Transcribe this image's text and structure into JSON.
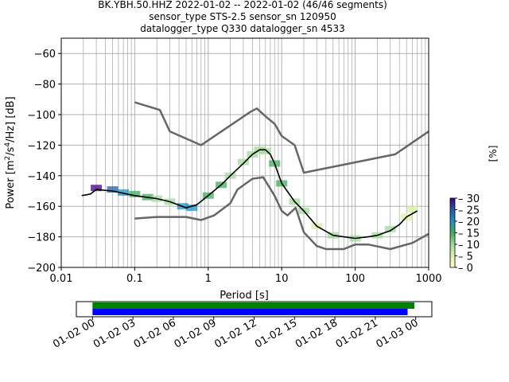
{
  "title_lines": [
    "BK.YBH.50.HHZ   2022-01-02 -- 2022-01-02  (46/46 segments)",
    "sensor_type STS-2.5 sensor_sn 120950",
    "datalogger_type Q330 datalogger_sn 4533"
  ],
  "chart_data": [
    {
      "type": "heatmap",
      "xlabel": "Period [s]",
      "ylabel_parts": {
        "pre": "Power [m",
        "sup1": "2",
        "mid": "/s",
        "sup2": "4",
        "post": "/Hz] [dB]"
      },
      "x_scale": "log",
      "xlim": [
        0.01,
        1000
      ],
      "ylim": [
        -200,
        -50
      ],
      "x_ticks": [
        0.01,
        0.1,
        1,
        10,
        100,
        1000
      ],
      "x_tick_labels": [
        "0.01",
        "0.1",
        "1",
        "10",
        "100",
        "1000"
      ],
      "y_ticks": [
        -200,
        -180,
        -160,
        -140,
        -120,
        -100,
        -80,
        -60
      ],
      "y_tick_labels": [
        "−200",
        "−180",
        "−160",
        "−140",
        "−120",
        "−100",
        "−80",
        "−60"
      ],
      "grid": true,
      "series": [
        {
          "name": "",
          "color": "#000000",
          "x": [
            0.019,
            0.025,
            0.03,
            0.05,
            0.1,
            0.2,
            0.3,
            0.5,
            0.7,
            1,
            1.5,
            2,
            3,
            4,
            5,
            6,
            7,
            8,
            10,
            15,
            20,
            30,
            50,
            70,
            100,
            150,
            200,
            300,
            400,
            500,
            700
          ],
          "y": [
            -153,
            -152,
            -149,
            -150,
            -153,
            -155,
            -157,
            -161,
            -159,
            -153,
            -146,
            -140,
            -132,
            -126,
            -123,
            -123,
            -126,
            -132,
            -145,
            -157,
            -163,
            -173,
            -179,
            -180,
            -181,
            -180,
            -179,
            -176,
            -172,
            -167,
            -163
          ]
        },
        {
          "name": "",
          "color": "#666666",
          "x": [
            0.1,
            0.22,
            0.3,
            0.8,
            3.8,
            4.6,
            6.3,
            8,
            10,
            15,
            20,
            350,
            1000
          ],
          "y": [
            -92,
            -97,
            -111,
            -120,
            -98,
            -96,
            -102,
            -106,
            -114,
            -120,
            -138,
            -126,
            -111
          ]
        },
        {
          "name": "",
          "color": "#666666",
          "x": [
            0.1,
            0.2,
            0.5,
            0.8,
            1.2,
            2,
            2.5,
            4,
            5.6,
            8,
            10,
            12,
            15.5,
            20,
            30,
            40,
            70,
            100,
            150,
            300,
            600,
            1000
          ],
          "y": [
            -168,
            -167,
            -167,
            -169,
            -166,
            -158,
            -149,
            -142,
            -141,
            -153,
            -163,
            -166,
            -161,
            -177,
            -186,
            -188,
            -188,
            -185,
            -185,
            -188,
            -184,
            -178
          ]
        }
      ],
      "density_bins": [
        {
          "x": 0.03,
          "y": -148,
          "p": 30
        },
        {
          "x": 0.05,
          "y": -149,
          "p": 25
        },
        {
          "x": 0.07,
          "y": -151,
          "p": 20
        },
        {
          "x": 0.1,
          "y": -152,
          "p": 18
        },
        {
          "x": 0.15,
          "y": -154,
          "p": 16
        },
        {
          "x": 0.2,
          "y": -155,
          "p": 12
        },
        {
          "x": 0.3,
          "y": -157,
          "p": 14
        },
        {
          "x": 0.45,
          "y": -160,
          "p": 20
        },
        {
          "x": 0.6,
          "y": -161,
          "p": 22
        },
        {
          "x": 1,
          "y": -153,
          "p": 18
        },
        {
          "x": 1.5,
          "y": -146,
          "p": 15
        },
        {
          "x": 2,
          "y": -140,
          "p": 14
        },
        {
          "x": 3,
          "y": -131,
          "p": 12
        },
        {
          "x": 4,
          "y": -126,
          "p": 10
        },
        {
          "x": 5,
          "y": -123,
          "p": 12
        },
        {
          "x": 6,
          "y": -124,
          "p": 14
        },
        {
          "x": 8,
          "y": -132,
          "p": 16
        },
        {
          "x": 10,
          "y": -145,
          "p": 15
        },
        {
          "x": 15,
          "y": -157,
          "p": 12
        },
        {
          "x": 20,
          "y": -163,
          "p": 10
        },
        {
          "x": 30,
          "y": -173,
          "p": 9
        },
        {
          "x": 50,
          "y": -179,
          "p": 12
        },
        {
          "x": 100,
          "y": -181,
          "p": 14
        },
        {
          "x": 200,
          "y": -179,
          "p": 12
        },
        {
          "x": 300,
          "y": -175,
          "p": 10
        },
        {
          "x": 500,
          "y": -167,
          "p": 8
        },
        {
          "x": 600,
          "y": -162,
          "p": 6
        }
      ]
    },
    {
      "type": "bar",
      "x_tick_labels": [
        "01-02 00",
        "01-02 03",
        "01-02 06",
        "01-02 09",
        "01-02 12",
        "01-02 15",
        "01-02 18",
        "01-02 21",
        "01-03 00"
      ],
      "x_ticks_hours": [
        0,
        3,
        6,
        9,
        12,
        15,
        18,
        21,
        24
      ],
      "xlim_hours": [
        -1.2,
        25.2
      ],
      "bars": [
        {
          "color": "#008000",
          "start_hours": 0,
          "end_hours": 23.9
        },
        {
          "color": "#0000ff",
          "start_hours": 0,
          "end_hours": 23.4
        }
      ]
    }
  ],
  "colorbar": {
    "label": "[%]",
    "ticks": [
      0,
      5,
      10,
      15,
      20,
      25,
      30
    ],
    "range": [
      0,
      30
    ],
    "colors": [
      "#ffffcc",
      "#d9f0a3",
      "#a1d99b",
      "#41ab5d",
      "#1d91c0",
      "#225ea8",
      "#3f007d"
    ]
  }
}
